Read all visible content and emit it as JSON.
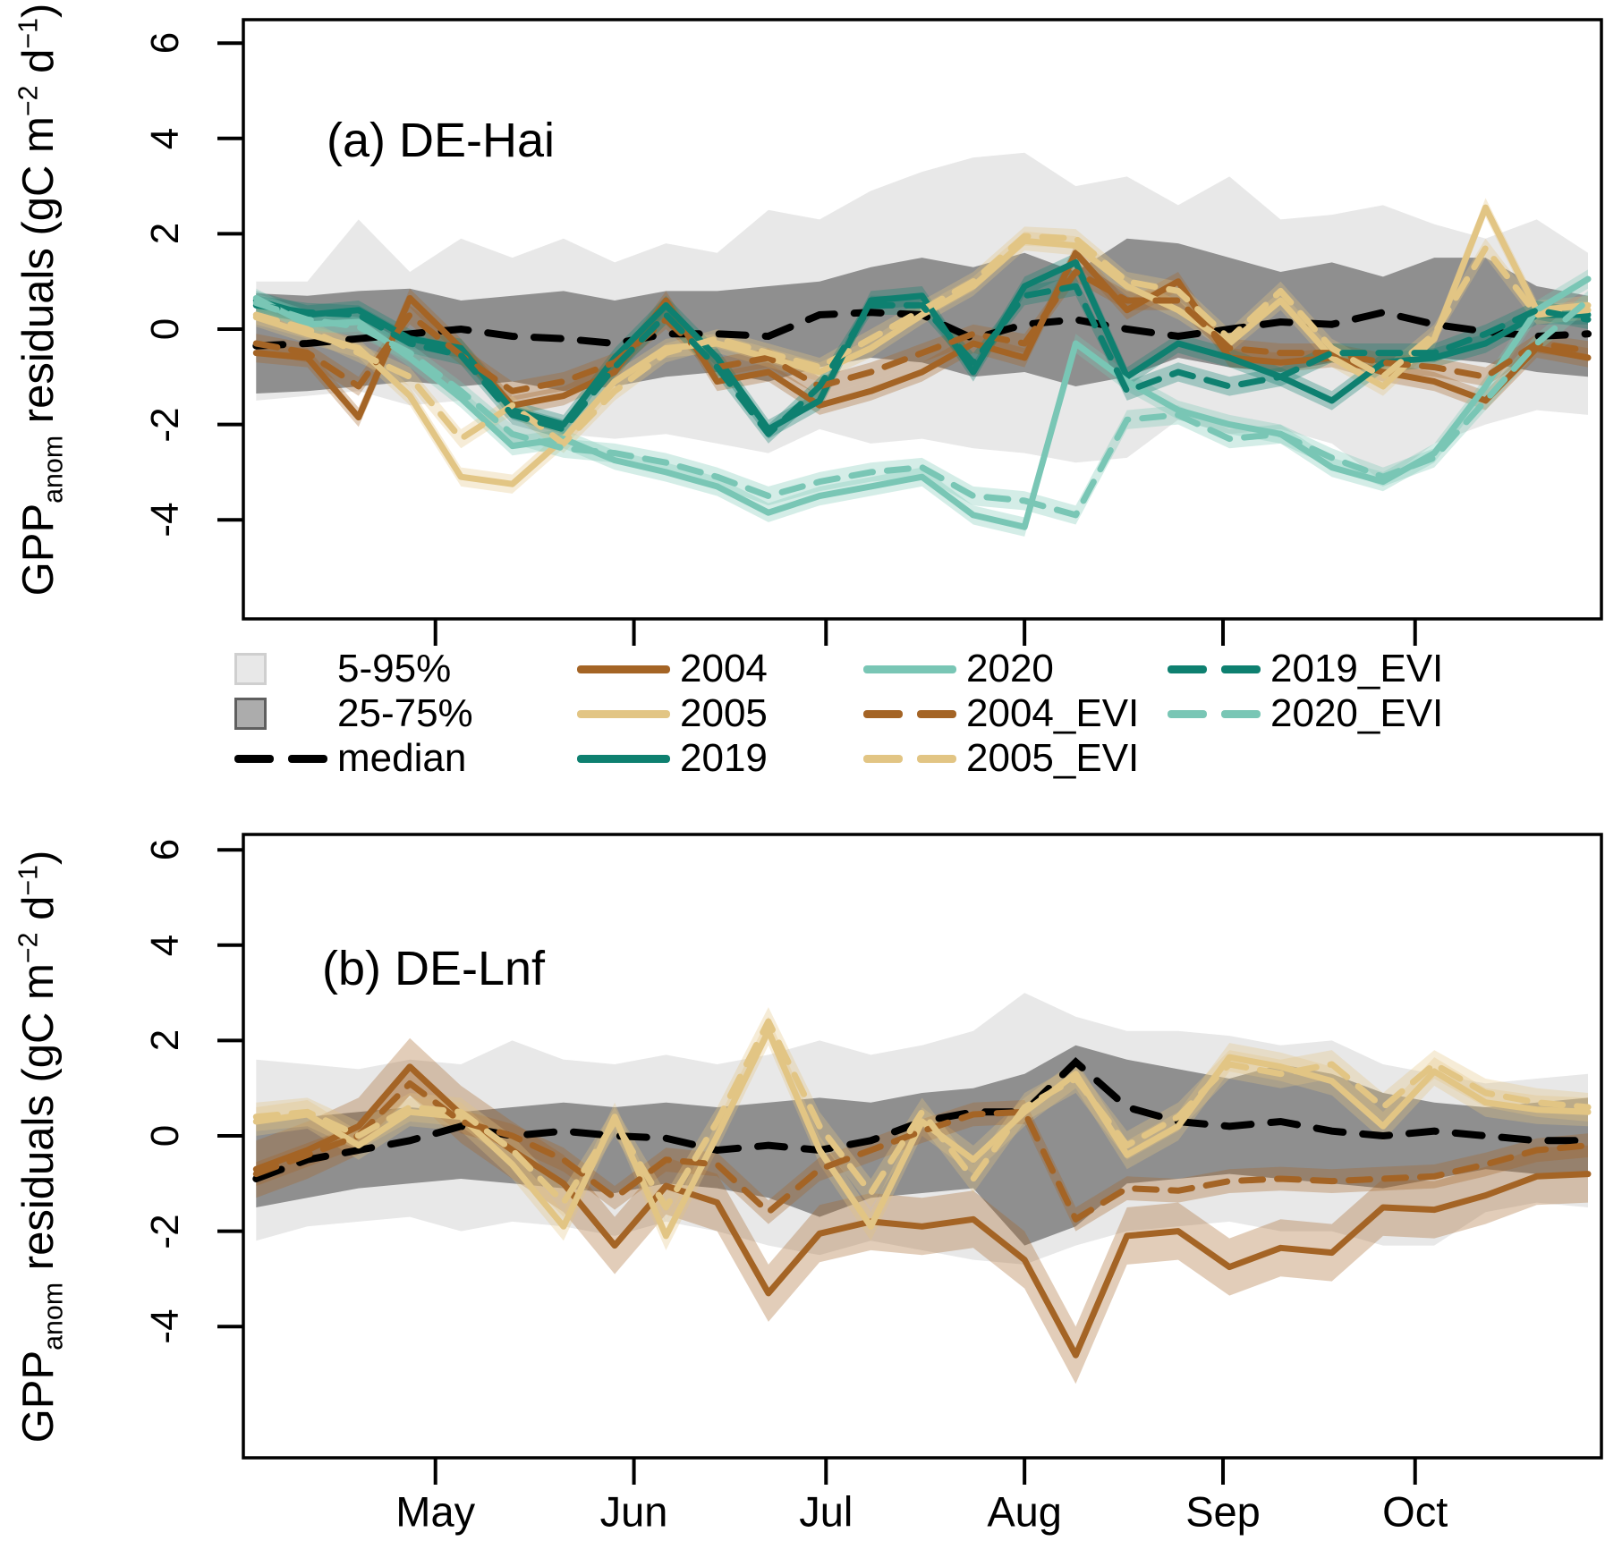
{
  "figure": {
    "ylabel": {
      "p1": "GPP",
      "sub": "anom",
      "p2": " residuals (gC  m",
      "sup1": "−2",
      "p3": " d",
      "sup2": "−1",
      "p4": ")"
    },
    "months": [
      "May",
      "Jun",
      "Jul",
      "Aug",
      "Sep",
      "Oct"
    ],
    "month_tick_doy": [
      121,
      152,
      182,
      213,
      244,
      274
    ],
    "y_ticks": [
      "6",
      "4",
      "2",
      "0",
      "-2",
      "-4"
    ],
    "y_tick_values": [
      6,
      4,
      2,
      0,
      -2,
      -4
    ]
  },
  "legend": {
    "column_lefts": [
      262,
      645,
      965,
      1305
    ],
    "columns": [
      [
        0,
        1,
        2
      ],
      [
        3,
        4,
        5
      ],
      [
        6,
        7,
        8
      ],
      [
        9,
        10
      ]
    ],
    "items": [
      {
        "label": "5-95%",
        "type": "box",
        "color": "#E8E8E8",
        "border": "#CFCFCF"
      },
      {
        "label": "25-75%",
        "type": "box",
        "color": "#ACACAC",
        "border": "#5F5F5F"
      },
      {
        "label": "median",
        "type": "dash",
        "color": "#000000"
      },
      {
        "label": "2004",
        "type": "line",
        "color": "#A46425"
      },
      {
        "label": "2005",
        "type": "line",
        "color": "#E2C584"
      },
      {
        "label": "2019",
        "type": "line",
        "color": "#0E8070"
      },
      {
        "label": "2020",
        "type": "line",
        "color": "#79C6B5"
      },
      {
        "label": "2004_EVI",
        "type": "dash",
        "color": "#A46425"
      },
      {
        "label": "2005_EVI",
        "type": "dash",
        "color": "#E2C584"
      },
      {
        "label": "2019_EVI",
        "type": "dash",
        "color": "#0E8070"
      },
      {
        "label": "2020_EVI",
        "type": "dash",
        "color": "#79C6B5"
      }
    ]
  },
  "chart_data": [
    {
      "type": "line",
      "panel_label": "(a) DE-Hai",
      "site": "DE-Hai",
      "xlabel": "",
      "ylabel": "GPPanom residuals (gC m-2 d-1)",
      "x_doy": [
        93,
        101,
        109,
        117,
        125,
        133,
        141,
        149,
        157,
        165,
        173,
        181,
        189,
        197,
        205,
        213,
        221,
        229,
        237,
        245,
        253,
        261,
        269,
        277,
        285,
        293,
        301
      ],
      "ylim": [
        -6.1,
        6.4
      ],
      "grid": false,
      "bands": {
        "p5_95": {
          "label": "5-95%",
          "color": "#E8E8E8",
          "upper": [
            1.0,
            1.0,
            2.3,
            1.2,
            1.9,
            1.5,
            1.9,
            1.4,
            1.8,
            1.6,
            2.5,
            2.3,
            2.9,
            3.3,
            3.6,
            3.7,
            3.0,
            3.2,
            2.6,
            3.2,
            2.3,
            2.4,
            2.6,
            2.2,
            1.9,
            2.3,
            1.6
          ],
          "lower": [
            -1.5,
            -1.4,
            -1.3,
            -1.6,
            -1.5,
            -2.5,
            -2.2,
            -2.3,
            -2.2,
            -2.4,
            -2.6,
            -2.1,
            -2.4,
            -2.3,
            -2.5,
            -2.6,
            -2.8,
            -2.7,
            -1.9,
            -2.2,
            -2.1,
            -2.4,
            -3.2,
            -2.4,
            -2.0,
            -1.7,
            -1.8
          ]
        },
        "p25_75": {
          "label": "25-75%",
          "color": "#8F8F8F",
          "upper": [
            0.75,
            0.7,
            0.8,
            0.85,
            0.6,
            0.7,
            0.8,
            0.6,
            0.8,
            0.8,
            0.9,
            1.0,
            1.3,
            1.5,
            1.3,
            1.6,
            1.2,
            1.9,
            1.8,
            1.5,
            1.2,
            1.4,
            1.1,
            1.5,
            1.5,
            0.9,
            0.7
          ],
          "lower": [
            -1.35,
            -1.3,
            -1.2,
            -1.1,
            -1.2,
            -1.1,
            -1.3,
            -1.2,
            -1.0,
            -0.9,
            -1.1,
            -0.8,
            -0.6,
            -0.7,
            -1.0,
            -0.9,
            -1.2,
            -1.0,
            -0.6,
            -0.8,
            -0.9,
            -0.7,
            -0.8,
            -0.6,
            -0.7,
            -0.9,
            -1.0
          ]
        }
      },
      "median": {
        "label": "median",
        "color": "#000000",
        "values": [
          -0.35,
          -0.3,
          -0.2,
          -0.1,
          0.0,
          -0.15,
          -0.2,
          -0.3,
          -0.1,
          -0.1,
          -0.15,
          0.3,
          0.35,
          0.3,
          -0.2,
          0.1,
          0.2,
          0.0,
          -0.15,
          0.0,
          0.15,
          0.1,
          0.35,
          0.1,
          -0.05,
          -0.15,
          -0.1
        ]
      },
      "series": [
        {
          "name": "2004",
          "color": "#A46425",
          "dashed": false,
          "env": 0.2,
          "values": [
            -0.5,
            -0.6,
            -1.85,
            0.65,
            -0.4,
            -1.6,
            -1.4,
            -0.9,
            0.6,
            -1.1,
            -0.9,
            -1.6,
            -1.3,
            -0.9,
            -0.3,
            -0.6,
            1.6,
            0.4,
            1.0,
            -0.6,
            -0.7,
            -0.6,
            -0.9,
            -1.1,
            -1.5,
            -0.4,
            -0.6
          ]
        },
        {
          "name": "2005",
          "color": "#E2C584",
          "dashed": false,
          "env": 0.2,
          "values": [
            0.25,
            -0.1,
            -0.4,
            -1.4,
            -3.1,
            -3.25,
            -2.3,
            -1.1,
            -0.4,
            -0.3,
            -0.6,
            -0.9,
            -0.4,
            0.3,
            0.9,
            1.85,
            1.75,
            0.9,
            0.4,
            -0.3,
            0.6,
            -0.6,
            -1.2,
            -0.2,
            2.55,
            0.4,
            0.5
          ]
        },
        {
          "name": "2019",
          "color": "#0E8070",
          "dashed": false,
          "env": 0.2,
          "values": [
            0.6,
            0.3,
            0.4,
            -0.2,
            -0.4,
            -1.7,
            -2.0,
            -0.6,
            0.5,
            -0.6,
            -2.1,
            -1.5,
            0.6,
            0.7,
            -0.9,
            0.9,
            1.4,
            -1.0,
            -0.3,
            -0.6,
            -1.0,
            -1.5,
            -0.7,
            -0.6,
            -0.3,
            0.3,
            0.3
          ]
        },
        {
          "name": "2020",
          "color": "#79C6B5",
          "dashed": false,
          "env": 0.2,
          "values": [
            0.65,
            0.1,
            0.15,
            -0.6,
            -1.45,
            -2.45,
            -2.3,
            -2.75,
            -3.0,
            -3.3,
            -3.85,
            -3.5,
            -3.3,
            -3.1,
            -3.9,
            -4.15,
            -0.3,
            -1.1,
            -1.7,
            -2.0,
            -2.2,
            -2.9,
            -3.2,
            -2.6,
            -1.2,
            0.4,
            1.05
          ]
        },
        {
          "name": "2004_EVI",
          "color": "#A46425",
          "dashed": true,
          "env": 0.2,
          "values": [
            -0.3,
            -0.5,
            -1.2,
            0.3,
            -0.55,
            -1.3,
            -1.1,
            -0.7,
            0.2,
            -0.8,
            -0.6,
            -1.2,
            -0.9,
            -0.5,
            -0.1,
            -0.3,
            1.2,
            0.6,
            0.6,
            -0.4,
            -0.5,
            -0.5,
            -0.7,
            -0.8,
            -1.0,
            -0.3,
            -0.45
          ]
        },
        {
          "name": "2005_EVI",
          "color": "#E2C584",
          "dashed": true,
          "env": 0.2,
          "values": [
            0.3,
            0.0,
            -0.5,
            -1.0,
            -2.3,
            -1.6,
            -2.4,
            -1.3,
            -0.5,
            -0.2,
            -0.5,
            -0.8,
            -0.2,
            0.4,
            1.0,
            1.95,
            1.9,
            1.0,
            0.8,
            -0.2,
            0.8,
            -0.4,
            -1.0,
            -0.1,
            1.7,
            0.3,
            0.4
          ]
        },
        {
          "name": "2019_EVI",
          "color": "#0E8070",
          "dashed": true,
          "env": 0.2,
          "values": [
            0.5,
            0.35,
            0.3,
            -0.3,
            -0.55,
            -1.8,
            -2.1,
            -0.8,
            0.3,
            -0.8,
            -2.2,
            -1.2,
            0.5,
            0.5,
            -0.7,
            0.7,
            0.9,
            -1.3,
            -0.9,
            -1.2,
            -1.0,
            -0.5,
            -0.5,
            -0.5,
            -0.1,
            0.4,
            0.2
          ]
        },
        {
          "name": "2020_EVI",
          "color": "#79C6B5",
          "dashed": true,
          "env": 0.2,
          "values": [
            0.55,
            0.2,
            0.05,
            -0.5,
            -1.3,
            -2.2,
            -2.5,
            -2.6,
            -2.8,
            -3.1,
            -3.5,
            -3.2,
            -3.0,
            -2.9,
            -3.5,
            -3.6,
            -3.9,
            -1.9,
            -1.8,
            -2.3,
            -2.2,
            -2.7,
            -3.1,
            -2.7,
            -1.5,
            -0.3,
            0.6
          ]
        }
      ]
    },
    {
      "type": "line",
      "panel_label": "(b) DE-Lnf",
      "site": "DE-Lnf",
      "xlabel": "",
      "ylabel": "GPPanom residuals (gC m-2 d-1)",
      "x_doy": [
        93,
        101,
        109,
        117,
        125,
        133,
        141,
        149,
        157,
        165,
        173,
        181,
        189,
        197,
        205,
        213,
        221,
        229,
        237,
        245,
        253,
        261,
        269,
        277,
        285,
        293,
        301
      ],
      "ylim": [
        -6.75,
        6.3
      ],
      "grid": false,
      "bands": {
        "p5_95": {
          "label": "5-95%",
          "color": "#E8E8E8",
          "upper": [
            1.6,
            1.5,
            1.4,
            1.6,
            1.5,
            2.0,
            1.6,
            1.5,
            1.7,
            1.5,
            1.7,
            2.0,
            1.7,
            1.9,
            2.2,
            3.0,
            2.5,
            2.2,
            2.2,
            2.1,
            1.9,
            2.0,
            1.5,
            1.3,
            1.1,
            1.2,
            1.3
          ],
          "lower": [
            -2.2,
            -1.9,
            -1.8,
            -1.7,
            -2.0,
            -1.8,
            -1.9,
            -2.1,
            -1.8,
            -2.0,
            -2.3,
            -2.5,
            -2.2,
            -2.4,
            -2.6,
            -2.7,
            -2.3,
            -2.0,
            -1.9,
            -1.8,
            -2.0,
            -2.0,
            -2.3,
            -2.3,
            -1.6,
            -1.4,
            -1.5
          ]
        },
        "p25_75": {
          "label": "25-75%",
          "color": "#8F8F8F",
          "upper": [
            0.3,
            0.4,
            0.5,
            0.6,
            0.5,
            0.6,
            0.7,
            0.6,
            0.7,
            0.6,
            0.7,
            0.8,
            0.7,
            0.9,
            1.0,
            1.3,
            1.9,
            1.6,
            1.4,
            1.2,
            1.5,
            1.3,
            0.9,
            0.7,
            0.6,
            0.7,
            0.8
          ],
          "lower": [
            -1.5,
            -1.3,
            -1.1,
            -1.0,
            -0.9,
            -1.0,
            -1.1,
            -1.2,
            -1.0,
            -1.1,
            -1.3,
            -1.7,
            -1.3,
            -1.2,
            -1.1,
            -2.3,
            -1.9,
            -1.0,
            -0.9,
            -0.8,
            -0.9,
            -1.0,
            -1.1,
            -0.9,
            -0.7,
            -0.8,
            -0.8
          ]
        }
      },
      "median": {
        "label": "median",
        "color": "#000000",
        "values": [
          -0.9,
          -0.5,
          -0.3,
          -0.1,
          0.2,
          0.0,
          0.1,
          0.0,
          -0.05,
          -0.3,
          -0.2,
          -0.3,
          -0.1,
          0.3,
          0.5,
          0.5,
          1.55,
          0.6,
          0.3,
          0.2,
          0.3,
          0.1,
          0.0,
          0.1,
          0.0,
          -0.1,
          -0.1
        ]
      },
      "series": [
        {
          "name": "2004",
          "color": "#A46425",
          "dashed": false,
          "env": 0.6,
          "values": [
            -0.7,
            -0.3,
            0.2,
            1.45,
            0.45,
            -0.3,
            -1.0,
            -2.3,
            -1.05,
            -1.4,
            -3.3,
            -2.05,
            -1.8,
            -1.9,
            -1.75,
            -2.6,
            -4.6,
            -2.1,
            -2.0,
            -2.75,
            -2.35,
            -2.45,
            -1.5,
            -1.55,
            -1.25,
            -0.85,
            -0.8
          ]
        },
        {
          "name": "2005",
          "color": "#E2C584",
          "dashed": false,
          "env": 0.3,
          "values": [
            0.3,
            0.45,
            -0.2,
            0.5,
            0.4,
            -0.6,
            -1.9,
            0.4,
            -2.1,
            0.0,
            2.2,
            -0.3,
            -1.9,
            0.3,
            -0.5,
            0.5,
            1.3,
            -0.4,
            0.2,
            1.65,
            1.45,
            1.15,
            0.2,
            1.35,
            0.7,
            0.55,
            0.5
          ]
        },
        {
          "name": "2004_EVI",
          "color": "#A46425",
          "dashed": true,
          "env": 0.25,
          "values": [
            -0.8,
            -0.4,
            0.0,
            1.1,
            0.3,
            0.0,
            -0.5,
            -1.3,
            -0.5,
            -0.6,
            -1.6,
            -0.7,
            -0.3,
            0.1,
            0.45,
            0.5,
            -1.75,
            -1.1,
            -1.15,
            -0.95,
            -0.9,
            -0.95,
            -0.9,
            -0.85,
            -0.6,
            -0.3,
            -0.2
          ]
        },
        {
          "name": "2005_EVI",
          "color": "#E2C584",
          "dashed": true,
          "env": 0.3,
          "values": [
            0.4,
            0.5,
            0.0,
            0.6,
            0.5,
            -0.3,
            -1.4,
            0.3,
            -1.5,
            0.3,
            2.4,
            0.2,
            -1.2,
            0.5,
            -0.9,
            0.6,
            1.2,
            -0.2,
            0.4,
            1.5,
            1.3,
            1.5,
            0.6,
            1.5,
            0.9,
            0.7,
            0.6
          ]
        }
      ]
    }
  ]
}
